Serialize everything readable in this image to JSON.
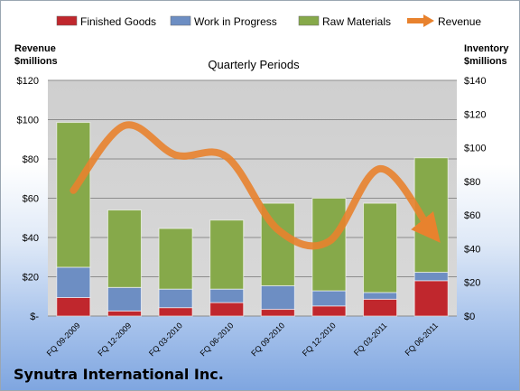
{
  "footer": {
    "company": "Synutra International Inc."
  },
  "colors": {
    "finished_goods": "#c0272d",
    "work_in_progress": "#6d8ec3",
    "raw_materials": "#86a94a",
    "revenue": "#e8822e",
    "plot_background": "#c8c8c8"
  },
  "chart_data": {
    "type": "bar",
    "title": "Quarterly Periods",
    "stacked": true,
    "categories": [
      "FQ 09-2009",
      "FQ 12-2009",
      "FQ 03-2010",
      "FQ 06-2010",
      "FQ 09-2010",
      "FQ 12-2010",
      "FQ 03-2011",
      "FQ 06-2011"
    ],
    "series": [
      {
        "name": "Finished Goods",
        "axis": "right",
        "values": [
          11,
          3,
          5,
          8,
          4,
          6,
          10,
          21
        ]
      },
      {
        "name": "Work in Progress",
        "axis": "right",
        "values": [
          18,
          14,
          11,
          8,
          14,
          9,
          4,
          5
        ]
      },
      {
        "name": "Raw Materials",
        "axis": "right",
        "values": [
          86,
          46,
          36,
          41,
          49,
          55,
          53,
          68
        ]
      }
    ],
    "line_series": {
      "name": "Revenue",
      "axis": "left",
      "values": [
        64,
        97,
        82,
        81,
        44,
        38,
        75,
        43
      ]
    },
    "left_axis": {
      "label_line1": "Revenue",
      "label_line2": "$millions",
      "ylim": [
        0,
        120
      ],
      "ticks": [
        "$-",
        "$20",
        "$40",
        "$60",
        "$80",
        "$100",
        "$120"
      ]
    },
    "right_axis": {
      "label_line1": "Inventory",
      "label_line2": "$millions",
      "ylim": [
        0,
        140
      ],
      "ticks": [
        "$0",
        "$20",
        "$40",
        "$60",
        "$80",
        "$100",
        "$120",
        "$140"
      ]
    },
    "legend_position": "top",
    "grid": true
  }
}
